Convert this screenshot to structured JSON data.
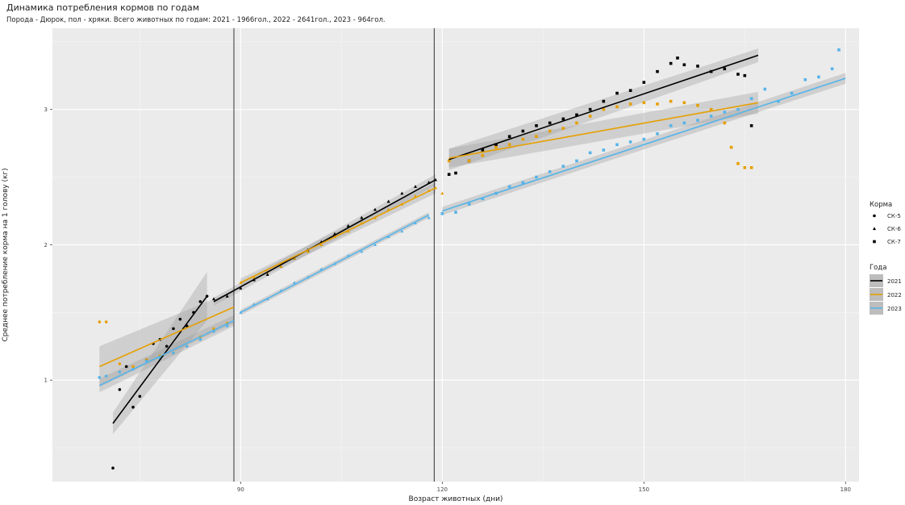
{
  "chart_data": {
    "type": "scatter",
    "title": "Динамика потребления кормов по годам",
    "subtitle": "Порода - Дюрок, пол - хряки. Всего животных по годам: 2021 - 1966гол., 2022 - 2641гол., 2023 - 964гол.",
    "xlabel": "Возраст животных (дни)",
    "ylabel": "Среднее потребление корма на 1 голову (кг)",
    "xlim": [
      62,
      182
    ],
    "ylim": [
      0.25,
      3.6
    ],
    "xticks": [
      90,
      120,
      150,
      180
    ],
    "yticks": [
      1,
      2,
      3
    ],
    "vlines": [
      89,
      118.8
    ],
    "grid": true,
    "legend_position": "right",
    "legend_feed": {
      "title": "Корма",
      "items": [
        {
          "label": "СК-5",
          "shape": "circle"
        },
        {
          "label": "СК-6",
          "shape": "triangle"
        },
        {
          "label": "СК-7",
          "shape": "square"
        }
      ]
    },
    "legend_year": {
      "title": "Года",
      "items": [
        {
          "label": "2021",
          "color": "#000000"
        },
        {
          "label": "2022",
          "color": "#E69F00"
        },
        {
          "label": "2023",
          "color": "#56B4E9"
        }
      ]
    },
    "series": [
      {
        "name": "2021",
        "color": "#000000",
        "segments": [
          {
            "feed": "СК-5",
            "shape": "circle",
            "points": [
              [
                71,
                0.35
              ],
              [
                72,
                0.93
              ],
              [
                73,
                1.1
              ],
              [
                74,
                0.8
              ],
              [
                75,
                0.88
              ],
              [
                76,
                1.15
              ],
              [
                77,
                1.27
              ],
              [
                78,
                1.3
              ],
              [
                79,
                1.25
              ],
              [
                80,
                1.38
              ],
              [
                81,
                1.45
              ],
              [
                82,
                1.4
              ],
              [
                83,
                1.5
              ],
              [
                84,
                1.58
              ],
              [
                85,
                1.62
              ]
            ],
            "fit": [
              [
                71,
                0.68
              ],
              [
                85,
                1.62
              ]
            ],
            "ci": [
              0.08,
              0.18
            ]
          },
          {
            "feed": "СК-6",
            "shape": "triangle",
            "points": [
              [
                86,
                1.6
              ],
              [
                88,
                1.62
              ],
              [
                90,
                1.68
              ],
              [
                92,
                1.74
              ],
              [
                94,
                1.78
              ],
              [
                96,
                1.84
              ],
              [
                98,
                1.9
              ],
              [
                100,
                1.96
              ],
              [
                102,
                2.02
              ],
              [
                104,
                2.08
              ],
              [
                106,
                2.14
              ],
              [
                108,
                2.2
              ],
              [
                110,
                2.26
              ],
              [
                112,
                2.32
              ],
              [
                114,
                2.38
              ],
              [
                116,
                2.43
              ],
              [
                118,
                2.46
              ],
              [
                119,
                2.48
              ]
            ],
            "fit": [
              [
                86,
                1.58
              ],
              [
                119,
                2.48
              ]
            ],
            "ci": [
              0.03,
              0.04
            ]
          },
          {
            "feed": "СК-7",
            "shape": "square",
            "points": [
              [
                121,
                2.52
              ],
              [
                122,
                2.53
              ],
              [
                124,
                2.62
              ],
              [
                126,
                2.7
              ],
              [
                128,
                2.74
              ],
              [
                130,
                2.8
              ],
              [
                132,
                2.84
              ],
              [
                134,
                2.88
              ],
              [
                136,
                2.9
              ],
              [
                138,
                2.93
              ],
              [
                140,
                2.96
              ],
              [
                142,
                3.0
              ],
              [
                144,
                3.06
              ],
              [
                146,
                3.12
              ],
              [
                148,
                3.14
              ],
              [
                150,
                3.2
              ],
              [
                152,
                3.28
              ],
              [
                154,
                3.34
              ],
              [
                155,
                3.38
              ],
              [
                156,
                3.33
              ],
              [
                158,
                3.32
              ],
              [
                160,
                3.28
              ],
              [
                162,
                3.3
              ],
              [
                164,
                3.26
              ],
              [
                165,
                3.25
              ],
              [
                166,
                2.88
              ]
            ],
            "fit": [
              [
                121,
                2.63
              ],
              [
                167,
                3.4
              ]
            ],
            "ci": [
              0.08,
              0.05
            ]
          }
        ]
      },
      {
        "name": "2022",
        "color": "#E69F00",
        "segments": [
          {
            "feed": "СК-5",
            "shape": "circle",
            "points": [
              [
                69,
                1.43
              ],
              [
                70,
                1.43
              ],
              [
                72,
                1.12
              ],
              [
                74,
                1.1
              ],
              [
                76,
                1.15
              ],
              [
                78,
                1.18
              ],
              [
                80,
                1.2
              ],
              [
                82,
                1.25
              ],
              [
                84,
                1.32
              ],
              [
                86,
                1.38
              ],
              [
                88,
                1.42
              ]
            ],
            "fit": [
              [
                69,
                1.1
              ],
              [
                89,
                1.54
              ]
            ],
            "ci": [
              0.15,
              0.12
            ]
          },
          {
            "feed": "СК-6",
            "shape": "triangle",
            "points": [
              [
                90,
                1.72
              ],
              [
                92,
                1.76
              ],
              [
                94,
                1.8
              ],
              [
                96,
                1.84
              ],
              [
                98,
                1.9
              ],
              [
                100,
                1.95
              ],
              [
                102,
                2.0
              ],
              [
                104,
                2.06
              ],
              [
                106,
                2.1
              ],
              [
                108,
                2.16
              ],
              [
                110,
                2.2
              ],
              [
                112,
                2.26
              ],
              [
                114,
                2.3
              ],
              [
                116,
                2.36
              ],
              [
                118,
                2.4
              ],
              [
                119,
                2.42
              ],
              [
                120,
                2.38
              ]
            ],
            "fit": [
              [
                90,
                1.72
              ],
              [
                119,
                2.42
              ]
            ],
            "ci": [
              0.03,
              0.04
            ]
          },
          {
            "feed": "СК-7",
            "shape": "square",
            "points": [
              [
                121,
                2.62
              ],
              [
                124,
                2.62
              ],
              [
                126,
                2.66
              ],
              [
                128,
                2.72
              ],
              [
                130,
                2.74
              ],
              [
                132,
                2.78
              ],
              [
                134,
                2.8
              ],
              [
                136,
                2.84
              ],
              [
                138,
                2.86
              ],
              [
                140,
                2.9
              ],
              [
                142,
                2.95
              ],
              [
                144,
                3.0
              ],
              [
                146,
                3.02
              ],
              [
                148,
                3.04
              ],
              [
                150,
                3.05
              ],
              [
                152,
                3.04
              ],
              [
                154,
                3.06
              ],
              [
                156,
                3.05
              ],
              [
                158,
                3.03
              ],
              [
                160,
                3.0
              ],
              [
                162,
                2.9
              ],
              [
                163,
                2.72
              ],
              [
                164,
                2.6
              ],
              [
                165,
                2.57
              ],
              [
                166,
                2.57
              ]
            ],
            "fit": [
              [
                121,
                2.64
              ],
              [
                167,
                3.05
              ]
            ],
            "ci": [
              0.07,
              0.08
            ]
          }
        ]
      },
      {
        "name": "2023",
        "color": "#56B4E9",
        "segments": [
          {
            "feed": "СК-5",
            "shape": "circle",
            "points": [
              [
                69,
                1.02
              ],
              [
                70,
                1.03
              ],
              [
                72,
                1.06
              ],
              [
                74,
                1.08
              ],
              [
                76,
                1.14
              ],
              [
                78,
                1.16
              ],
              [
                80,
                1.2
              ],
              [
                82,
                1.25
              ],
              [
                84,
                1.3
              ],
              [
                86,
                1.36
              ],
              [
                88,
                1.4
              ]
            ],
            "fit": [
              [
                69,
                0.96
              ],
              [
                89,
                1.44
              ]
            ],
            "ci": [
              0.05,
              0.04
            ]
          },
          {
            "feed": "СК-6",
            "shape": "triangle",
            "points": [
              [
                90,
                1.5
              ],
              [
                92,
                1.56
              ],
              [
                94,
                1.6
              ],
              [
                96,
                1.66
              ],
              [
                98,
                1.72
              ],
              [
                100,
                1.76
              ],
              [
                102,
                1.82
              ],
              [
                104,
                1.86
              ],
              [
                106,
                1.92
              ],
              [
                108,
                1.95
              ],
              [
                110,
                2.0
              ],
              [
                112,
                2.06
              ],
              [
                114,
                2.1
              ],
              [
                116,
                2.16
              ],
              [
                118,
                2.2
              ]
            ],
            "fit": [
              [
                90,
                1.5
              ],
              [
                118,
                2.22
              ]
            ],
            "ci": [
              0.02,
              0.02
            ]
          },
          {
            "feed": "СК-7",
            "shape": "square",
            "points": [
              [
                120,
                2.23
              ],
              [
                122,
                2.24
              ],
              [
                124,
                2.3
              ],
              [
                126,
                2.34
              ],
              [
                128,
                2.38
              ],
              [
                130,
                2.43
              ],
              [
                132,
                2.46
              ],
              [
                134,
                2.5
              ],
              [
                136,
                2.54
              ],
              [
                138,
                2.58
              ],
              [
                140,
                2.62
              ],
              [
                142,
                2.68
              ],
              [
                144,
                2.7
              ],
              [
                146,
                2.74
              ],
              [
                148,
                2.76
              ],
              [
                150,
                2.78
              ],
              [
                152,
                2.82
              ],
              [
                154,
                2.88
              ],
              [
                156,
                2.9
              ],
              [
                158,
                2.92
              ],
              [
                160,
                2.95
              ],
              [
                162,
                2.98
              ],
              [
                164,
                3.0
              ],
              [
                166,
                3.08
              ],
              [
                168,
                3.15
              ],
              [
                170,
                3.06
              ],
              [
                172,
                3.12
              ],
              [
                174,
                3.22
              ],
              [
                176,
                3.24
              ],
              [
                178,
                3.3
              ],
              [
                179,
                3.44
              ]
            ],
            "fit": [
              [
                120,
                2.25
              ],
              [
                180,
                3.23
              ]
            ],
            "ci": [
              0.03,
              0.04
            ]
          }
        ]
      }
    ]
  }
}
